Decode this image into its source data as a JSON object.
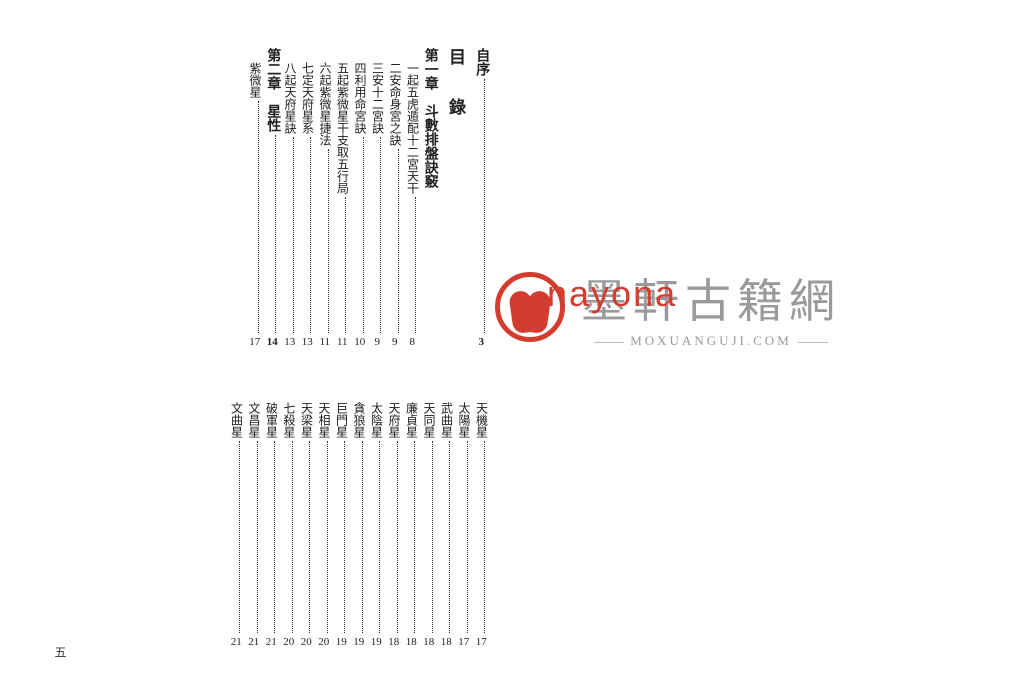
{
  "heading": "目　錄",
  "page_number": "五",
  "top_columns": [
    {
      "label": "自序",
      "page": "3",
      "cls": "chapter",
      "indent": 0
    },
    {
      "label": "第一章　斗數排盤訣竅",
      "page": "",
      "cls": "chapter",
      "indent": 0,
      "nodots": true
    },
    {
      "label": "一起五虎遁配十二宮天干",
      "page": "8",
      "indent": 1
    },
    {
      "label": "二安命身宮之訣",
      "page": "9",
      "indent": 1
    },
    {
      "label": "三安十二宮訣",
      "page": "9",
      "indent": 1
    },
    {
      "label": "四利用命宮訣",
      "page": "10",
      "indent": 1
    },
    {
      "label": "五起紫微星干支取五行局",
      "page": "11",
      "indent": 1
    },
    {
      "label": "六起紫微星捷法",
      "page": "11",
      "indent": 1
    },
    {
      "label": "七定天府星系",
      "page": "13",
      "indent": 1
    },
    {
      "label": "八起天府星訣",
      "page": "13",
      "indent": 1
    },
    {
      "label": "第二章　星性",
      "page": "14",
      "cls": "chapter",
      "indent": 0
    },
    {
      "label": "紫微星",
      "page": "17",
      "indent": 1
    }
  ],
  "bottom_columns": [
    {
      "label": "天機星",
      "page": "17"
    },
    {
      "label": "太陽星",
      "page": "17"
    },
    {
      "label": "武曲星",
      "page": "18"
    },
    {
      "label": "天同星",
      "page": "18"
    },
    {
      "label": "廉貞星",
      "page": "18"
    },
    {
      "label": "天府星",
      "page": "18"
    },
    {
      "label": "太陰星",
      "page": "19"
    },
    {
      "label": "貪狼星",
      "page": "19"
    },
    {
      "label": "巨門星",
      "page": "19"
    },
    {
      "label": "天相星",
      "page": "20"
    },
    {
      "label": "天梁星",
      "page": "20"
    },
    {
      "label": "七殺星",
      "page": "20"
    },
    {
      "label": "破軍星",
      "page": "21"
    },
    {
      "label": "文昌星",
      "page": "21"
    },
    {
      "label": "文曲星",
      "page": "21"
    }
  ],
  "watermark": {
    "main": "墨軒古籍網",
    "overlay": "nayona",
    "sub": "MOXUANGUJI.COM"
  }
}
